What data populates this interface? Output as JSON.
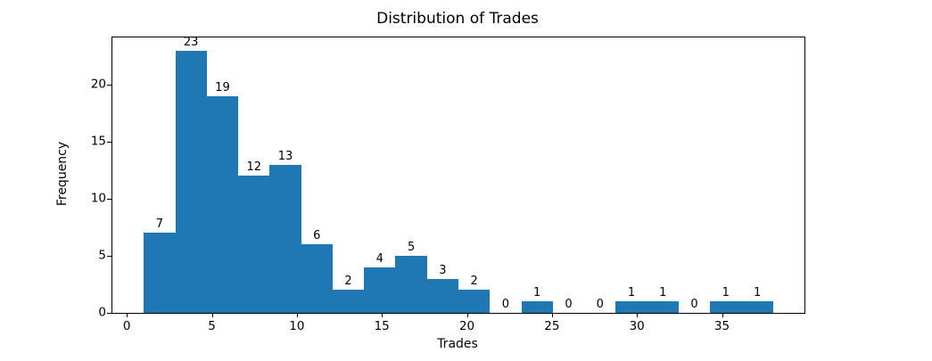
{
  "chart_data": {
    "type": "bar",
    "subtype": "histogram",
    "title": "Distribution of Trades",
    "xlabel": "Trades",
    "ylabel": "Frequency",
    "bin_start": 1,
    "bin_width": 1.85,
    "bin_edges": [
      1,
      2.85,
      4.7,
      6.55,
      8.4,
      10.25,
      12.1,
      13.95,
      15.8,
      17.65,
      19.5,
      21.35,
      23.2,
      25.05,
      26.9,
      28.75,
      30.6,
      32.45,
      34.3,
      36.15,
      38
    ],
    "values": [
      7,
      23,
      19,
      12,
      13,
      6,
      2,
      4,
      5,
      3,
      2,
      0,
      1,
      0,
      0,
      1,
      1,
      0,
      1,
      1
    ],
    "bar_labels": [
      "7",
      "23",
      "19",
      "12",
      "13",
      "6",
      "2",
      "4",
      "5",
      "3",
      "2",
      "0",
      "1",
      "0",
      "0",
      "1",
      "1",
      "0",
      "1",
      "1"
    ],
    "xticks": [
      0,
      5,
      10,
      15,
      20,
      25,
      30,
      35
    ],
    "yticks": [
      0,
      5,
      10,
      15,
      20
    ],
    "xlim": [
      -0.85,
      39.85
    ],
    "ylim": [
      0,
      24.15
    ],
    "bar_color": "#1f77b4",
    "text_color": "#000000",
    "grid": false,
    "legend": null
  }
}
